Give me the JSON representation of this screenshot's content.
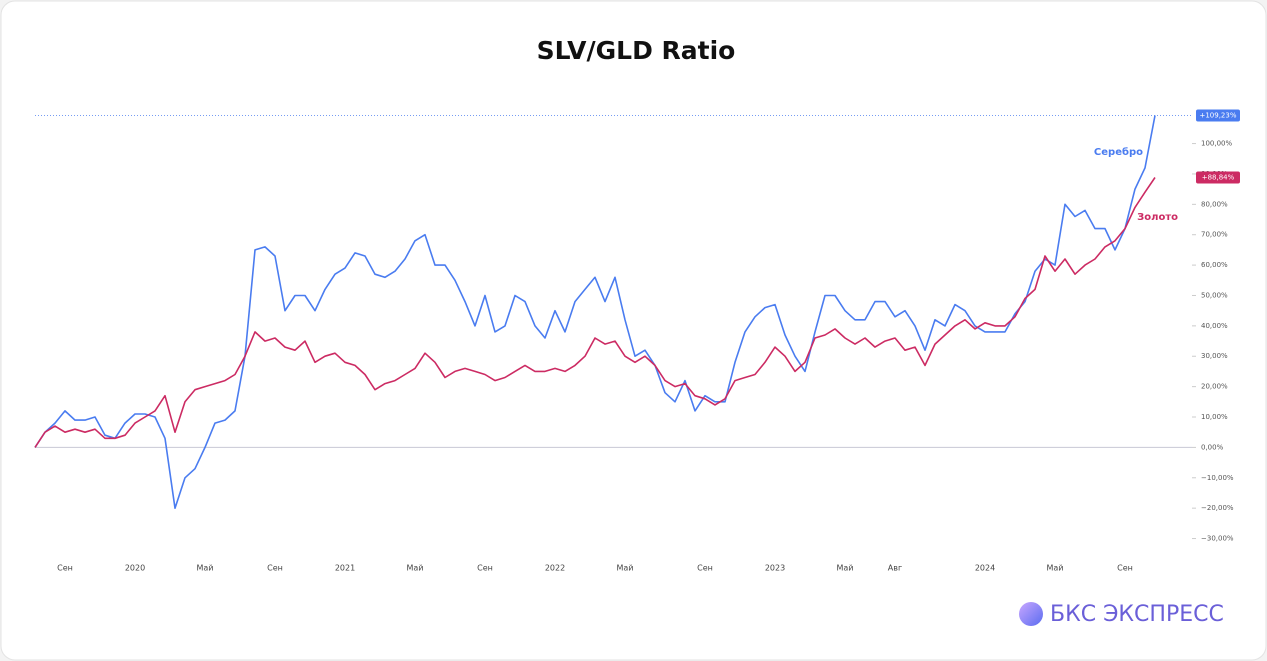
{
  "chart_data": {
    "type": "line",
    "title": "SLV/GLD Ratio",
    "brand": "БКС ЭКСПРЕСС",
    "categories": [
      null,
      null,
      null,
      "Сен",
      null,
      null,
      null,
      null,
      null,
      null,
      "2020",
      null,
      null,
      null,
      null,
      null,
      null,
      "Май",
      null,
      null,
      null,
      null,
      null,
      null,
      "Сен",
      null,
      null,
      null,
      null,
      null,
      null,
      "2021",
      null,
      null,
      null,
      null,
      null,
      null,
      "Май",
      null,
      null,
      null,
      null,
      null,
      null,
      "Сен",
      null,
      null,
      null,
      null,
      null,
      null,
      "2022",
      null,
      null,
      null,
      null,
      null,
      null,
      "Май",
      null,
      null,
      null,
      null,
      null,
      null,
      null,
      "Сен",
      null,
      null,
      null,
      null,
      null,
      null,
      "2023",
      null,
      null,
      null,
      null,
      null,
      null,
      "Май",
      null,
      null,
      null,
      null,
      "Авг",
      null,
      null,
      null,
      null,
      null,
      null,
      null,
      null,
      "2024",
      null,
      null,
      null,
      null,
      null,
      null,
      "Май",
      null,
      null,
      null,
      null,
      null,
      null,
      "Сен",
      null,
      null,
      null
    ],
    "series": [
      {
        "name": "Серебро",
        "color": "#4a7cf0",
        "values": [
          0,
          5,
          8,
          12,
          9,
          9,
          10,
          4,
          3,
          8,
          11,
          11,
          10,
          3,
          -20,
          -10,
          -7,
          0,
          8,
          9,
          12,
          30,
          65,
          66,
          63,
          45,
          50,
          50,
          45,
          52,
          57,
          59,
          64,
          63,
          57,
          56,
          58,
          62,
          68,
          70,
          60,
          60,
          55,
          48,
          40,
          50,
          38,
          40,
          50,
          48,
          40,
          36,
          45,
          38,
          48,
          52,
          56,
          48,
          56,
          42,
          30,
          32,
          27,
          18,
          15,
          22,
          12,
          17,
          15,
          15,
          28,
          38,
          43,
          46,
          47,
          37,
          30,
          25,
          38,
          50,
          50,
          45,
          42,
          42,
          48,
          48,
          43,
          45,
          40,
          32,
          42,
          40,
          47,
          45,
          40,
          38,
          38,
          38,
          44,
          48,
          58,
          62,
          60,
          80,
          76,
          78,
          72,
          72,
          65,
          72,
          85,
          92,
          109.23
        ],
        "value_labels": [
          null,
          null,
          null,
          null,
          null,
          null,
          null,
          null,
          null,
          null,
          null,
          null,
          null,
          null,
          null,
          null,
          null,
          null,
          null,
          null,
          null,
          null,
          null,
          null,
          null,
          null,
          null,
          null,
          null,
          null,
          null,
          null,
          null,
          null,
          null,
          null,
          null,
          null,
          null,
          null,
          null,
          null,
          null,
          null,
          null,
          null,
          null,
          null,
          null,
          null,
          null,
          null,
          null,
          null,
          null,
          null,
          null,
          null,
          null,
          null,
          null,
          null,
          null,
          null,
          null,
          null,
          null,
          null,
          null,
          null,
          null,
          null,
          null,
          null,
          null,
          null,
          null,
          null,
          null,
          null,
          null,
          null,
          null,
          null,
          null,
          null,
          null,
          null,
          null,
          null,
          null,
          null,
          null,
          null,
          null,
          null,
          null,
          null,
          null,
          null,
          null,
          null,
          null,
          null,
          null,
          null,
          null,
          null,
          null,
          null,
          null,
          null,
          "+109,23%"
        ]
      },
      {
        "name": "Золото",
        "color": "#cc2b63",
        "values": [
          0,
          5,
          7,
          5,
          6,
          5,
          6,
          3,
          3,
          4,
          8,
          10,
          12,
          17,
          5,
          15,
          19,
          20,
          21,
          22,
          24,
          30,
          38,
          35,
          36,
          33,
          32,
          35,
          28,
          30,
          31,
          28,
          27,
          24,
          19,
          21,
          22,
          24,
          26,
          31,
          28,
          23,
          25,
          26,
          25,
          24,
          22,
          23,
          25,
          27,
          25,
          25,
          26,
          25,
          27,
          30,
          36,
          34,
          35,
          30,
          28,
          30,
          27,
          22,
          20,
          21,
          17,
          16,
          14,
          16,
          22,
          23,
          24,
          28,
          33,
          30,
          25,
          28,
          36,
          37,
          39,
          36,
          34,
          36,
          33,
          35,
          36,
          32,
          33,
          27,
          34,
          37,
          40,
          42,
          39,
          41,
          40,
          40,
          43,
          49,
          52,
          63,
          58,
          62,
          57,
          60,
          62,
          66,
          68,
          72,
          79,
          84,
          88.84
        ],
        "value_labels": [
          null,
          null,
          null,
          null,
          null,
          null,
          null,
          null,
          null,
          null,
          null,
          null,
          null,
          null,
          null,
          null,
          null,
          null,
          null,
          null,
          null,
          null,
          null,
          null,
          null,
          null,
          null,
          null,
          null,
          null,
          null,
          null,
          null,
          null,
          null,
          null,
          null,
          null,
          null,
          null,
          null,
          null,
          null,
          null,
          null,
          null,
          null,
          null,
          null,
          null,
          null,
          null,
          null,
          null,
          null,
          null,
          null,
          null,
          null,
          null,
          null,
          null,
          null,
          null,
          null,
          null,
          null,
          null,
          null,
          null,
          null,
          null,
          null,
          null,
          null,
          null,
          null,
          null,
          null,
          null,
          null,
          null,
          null,
          null,
          null,
          null,
          null,
          null,
          null,
          null,
          null,
          null,
          null,
          null,
          null,
          null,
          null,
          null,
          null,
          null,
          null,
          null,
          null,
          null,
          null,
          null,
          null,
          null,
          null,
          null,
          null,
          null,
          "+88,84%"
        ]
      }
    ],
    "ylim": [
      -42,
      115
    ],
    "yticks": [
      {
        "value": -30,
        "label": "−30,00%"
      },
      {
        "value": -20,
        "label": "−20,00%"
      },
      {
        "value": -10,
        "label": "−10,00%"
      },
      {
        "value": 0,
        "label": "0,00%"
      },
      {
        "value": 10,
        "label": "10,00%"
      },
      {
        "value": 20,
        "label": "20,00%"
      },
      {
        "value": 30,
        "label": "30,00%"
      },
      {
        "value": 40,
        "label": "40,00%"
      },
      {
        "value": 50,
        "label": "50,00%"
      },
      {
        "value": 60,
        "label": "60,00%"
      },
      {
        "value": 70,
        "label": "70,00%"
      },
      {
        "value": 80,
        "label": "80,00%"
      },
      {
        "value": 90,
        "label": "90,00%"
      },
      {
        "value": 100,
        "label": "100,00%"
      }
    ]
  }
}
